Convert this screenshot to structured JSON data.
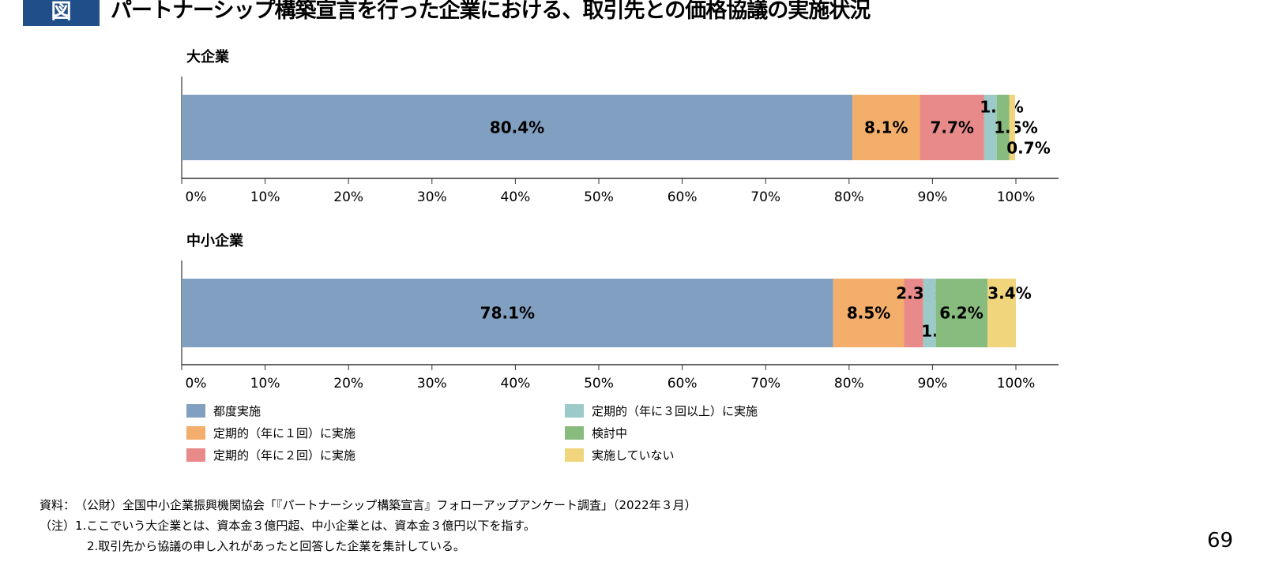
{
  "header": {
    "badge": "図",
    "title": "パートナーシップ構築宣言を行った企業における、取引先との価格協議の実施状況"
  },
  "chart_data": [
    {
      "type": "bar",
      "orientation": "horizontal",
      "stacked": true,
      "title": "大企業",
      "xlim": [
        0,
        100
      ],
      "xticks": [
        "0%",
        "10%",
        "20%",
        "30%",
        "40%",
        "50%",
        "60%",
        "70%",
        "80%",
        "90%",
        "100%"
      ],
      "values": [
        80.4,
        8.1,
        7.7,
        1.5,
        1.5,
        0.7
      ],
      "labels": [
        "80.4%",
        "8.1%",
        "7.7%",
        "1.5%",
        "1.5%",
        "0.7%"
      ]
    },
    {
      "type": "bar",
      "orientation": "horizontal",
      "stacked": true,
      "title": "中小企業",
      "xlim": [
        0,
        100
      ],
      "xticks": [
        "0%",
        "10%",
        "20%",
        "30%",
        "40%",
        "50%",
        "60%",
        "70%",
        "80%",
        "90%",
        "100%"
      ],
      "values": [
        78.1,
        8.5,
        2.3,
        1.5,
        6.2,
        3.4
      ],
      "labels": [
        "78.1%",
        "8.5%",
        "2.3%",
        "1.5%",
        "6.2%",
        "3.4%"
      ]
    }
  ],
  "legend": [
    {
      "name": "都度実施",
      "color": "#819fc0"
    },
    {
      "name": "定期的（年に１回）に実施",
      "color": "#f4ae6b"
    },
    {
      "name": "定期的（年に２回）に実施",
      "color": "#e88a8a"
    },
    {
      "name": "定期的（年に３回以上）に実施",
      "color": "#9ccac8"
    },
    {
      "name": "検討中",
      "color": "#88bb7e"
    },
    {
      "name": "実施していない",
      "color": "#f0d57c"
    }
  ],
  "notes": {
    "source": "資料：　（公財）全国中小企業振興機関協会「『パートナーシップ構築宣言』フォローアップアンケート調査」（2022年３月）",
    "note1": "（注）1.ここでいう大企業とは、資本金３億円超、中小企業とは、資本金３億円以下を指す。",
    "note2": "2.取引先から協議の申し入れがあったと回答した企業を集計している。"
  },
  "page_number": "69"
}
